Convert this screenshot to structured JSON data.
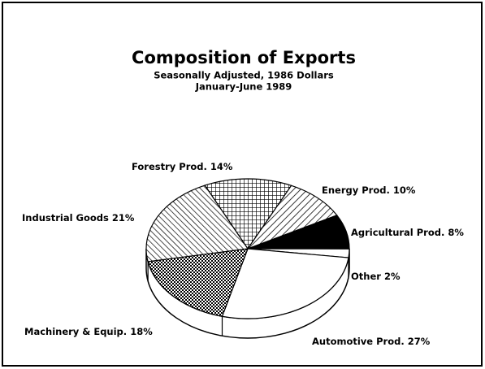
{
  "chart_data": {
    "type": "pie",
    "title": "Composition of Exports",
    "subtitle": [
      "Seasonally Adjusted, 1986 Dollars",
      "January-June 1989"
    ],
    "categories": [
      "Forestry Prod.",
      "Energy Prod.",
      "Agricultural Prod.",
      "Other",
      "Automotive Prod.",
      "Machinery & Equip.",
      "Industrial Goods"
    ],
    "values": [
      14,
      10,
      8,
      2,
      27,
      18,
      21
    ],
    "value_labels": [
      "14%",
      "10%",
      "8%",
      "2%",
      "27%",
      "18%",
      "21%"
    ]
  }
}
